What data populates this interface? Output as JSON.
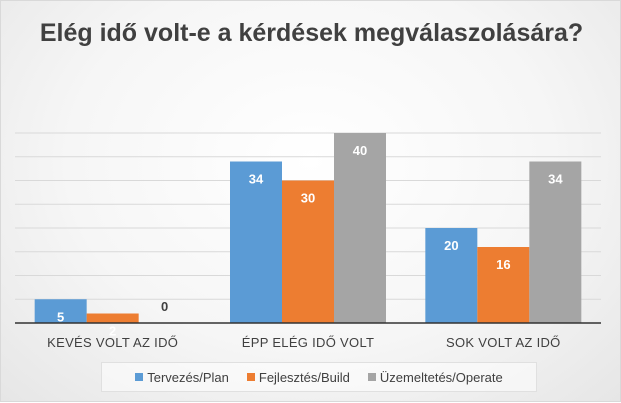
{
  "chart_data": {
    "type": "bar",
    "title": "Elég idő volt-e a kérdések megválaszolására?",
    "categories": [
      "KEVÉS VOLT AZ IDŐ",
      "ÉPP ELÉG IDŐ VOLT",
      "SOK VOLT AZ IDŐ"
    ],
    "series": [
      {
        "name": "Tervezés/Plan",
        "color": "#5b9bd5",
        "values": [
          5,
          34,
          20
        ]
      },
      {
        "name": "Fejlesztés/Build",
        "color": "#ed7d31",
        "values": [
          2,
          30,
          16
        ]
      },
      {
        "name": "Üzemeltetés/Operate",
        "color": "#a5a5a5",
        "values": [
          0,
          40,
          34
        ]
      }
    ],
    "ylim": [
      0,
      40
    ],
    "grid": true,
    "legend_position": "bottom",
    "data_labels": true
  }
}
